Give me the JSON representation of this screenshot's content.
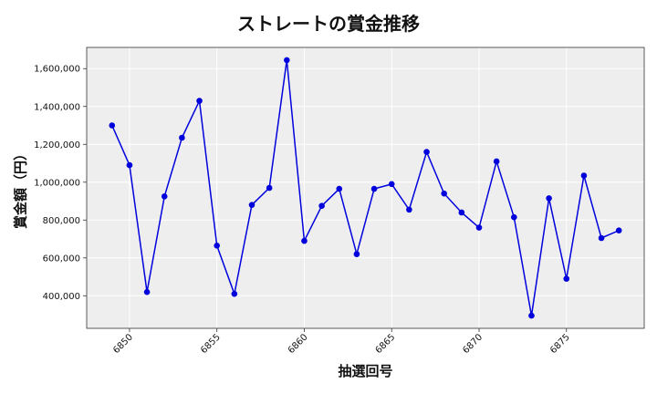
{
  "chart_data": {
    "type": "line",
    "title": "ストレートの賞金推移",
    "xlabel": "抽選回号",
    "ylabel": "賞金額（円）",
    "x": [
      6849,
      6850,
      6851,
      6852,
      6853,
      6854,
      6855,
      6856,
      6857,
      6858,
      6859,
      6860,
      6861,
      6862,
      6863,
      6864,
      6865,
      6866,
      6867,
      6868,
      6869,
      6870,
      6871,
      6872,
      6873,
      6874,
      6875,
      6876,
      6877,
      6878
    ],
    "series": [
      {
        "values": [
          1300000,
          1090000,
          420000,
          925000,
          1235000,
          1430000,
          665000,
          410000,
          880000,
          970000,
          1645000,
          690000,
          875000,
          965000,
          620000,
          965000,
          990000,
          855000,
          1160000,
          940000,
          840000,
          760000,
          1110000,
          815000,
          295000,
          915000,
          490000,
          1035000,
          705000,
          745000
        ],
        "color": "#0000dd"
      }
    ],
    "xticks": [
      6850,
      6855,
      6860,
      6865,
      6870,
      6875
    ],
    "xtick_labels": [
      "6850",
      "6855",
      "6860",
      "6865",
      "6870",
      "6875"
    ],
    "yticks": [
      400000,
      600000,
      800000,
      1000000,
      1200000,
      1400000,
      1600000
    ],
    "ytick_labels": [
      "400,000",
      "600,000",
      "800,000",
      "1,000,000",
      "1,200,000",
      "1,400,000",
      "1,600,000"
    ],
    "xlim": [
      6847.55,
      6879.45
    ],
    "ylim": [
      228000,
      1712000
    ],
    "grid": true,
    "plot_background": "#eeeeee"
  }
}
